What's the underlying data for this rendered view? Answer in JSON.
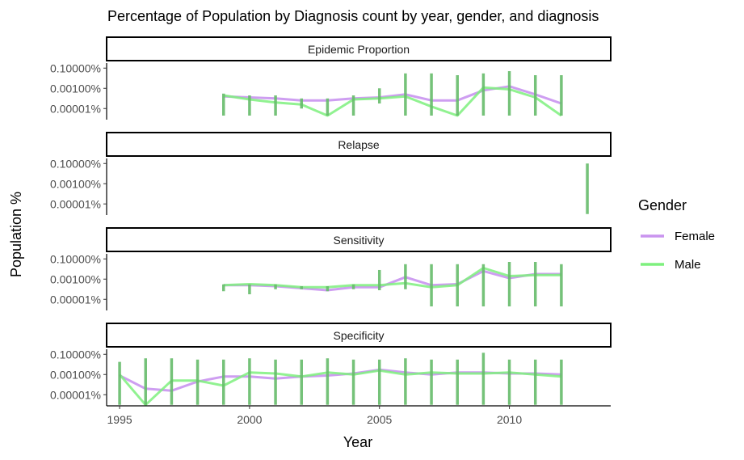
{
  "chart_data": {
    "type": "line",
    "title": "Percentage of Population by Diagnosis count by year, gender, and diagnosis",
    "xlabel": "Year",
    "ylabel": "Population %",
    "x_ticks": [
      1995,
      2000,
      2005,
      2010
    ],
    "x_tick_labels": [
      "1995",
      "2000",
      "2005",
      "2010"
    ],
    "xlim": [
      1994.5,
      2013.9
    ],
    "y_scale": "log10",
    "y_ticks": [
      0.1,
      0.001,
      1e-05
    ],
    "y_tick_labels": [
      "0.10000%",
      "0.00100%",
      "0.00001%"
    ],
    "ylim_log10": [
      -6.1,
      -0.5
    ],
    "grid": false,
    "legend": {
      "title": "Gender",
      "position": "right",
      "entries": [
        {
          "label": "Female",
          "color": "#c994ef"
        },
        {
          "label": "Male",
          "color": "#7ef07e"
        }
      ]
    },
    "facets": [
      {
        "label": "Epidemic Proportion",
        "series": [
          {
            "name": "Female",
            "x": [
              1999,
              2000,
              2001,
              2002,
              2003,
              2004,
              2005,
              2006,
              2007,
              2008,
              2009,
              2010,
              2011,
              2012
            ],
            "y": [
              0.000158,
              0.000126,
              0.0001,
              6.31e-05,
              6.31e-05,
              0.0001,
              0.000126,
              0.000251,
              6.31e-05,
              6.31e-05,
              0.00063,
              0.00158,
              0.000251,
              3.16e-05
            ]
          },
          {
            "name": "Male",
            "x": [
              1999,
              2000,
              2001,
              2002,
              2003,
              2004,
              2005,
              2006,
              2007,
              2008,
              2009,
              2010,
              2011,
              2012
            ],
            "y": [
              0.0002,
              7.94e-05,
              3.98e-05,
              2.51e-05,
              2e-06,
              7.94e-05,
              0.0001,
              0.000158,
              1.58e-05,
              2e-06,
              0.0012,
              0.000794,
              0.000126,
              2e-06
            ]
          }
        ],
        "spans": [
          {
            "x": 1999,
            "ymin": 2e-06,
            "ymax": 0.0003
          },
          {
            "x": 2000,
            "ymin": 2e-06,
            "ymax": 0.0002
          },
          {
            "x": 2001,
            "ymin": 2e-06,
            "ymax": 0.0002
          },
          {
            "x": 2002,
            "ymin": 1e-05,
            "ymax": 0.0001
          },
          {
            "x": 2003,
            "ymin": 2e-06,
            "ymax": 0.0001
          },
          {
            "x": 2004,
            "ymin": 2e-06,
            "ymax": 0.0002
          },
          {
            "x": 2005,
            "ymin": 3.16e-05,
            "ymax": 0.001
          },
          {
            "x": 2006,
            "ymin": 2e-06,
            "ymax": 0.03
          },
          {
            "x": 2007,
            "ymin": 2e-06,
            "ymax": 0.03
          },
          {
            "x": 2008,
            "ymin": 2e-06,
            "ymax": 0.02
          },
          {
            "x": 2009,
            "ymin": 2e-06,
            "ymax": 0.03
          },
          {
            "x": 2010,
            "ymin": 2e-06,
            "ymax": 0.05
          },
          {
            "x": 2011,
            "ymin": 2e-06,
            "ymax": 0.02
          },
          {
            "x": 2012,
            "ymin": 2e-06,
            "ymax": 0.02
          }
        ]
      },
      {
        "label": "Relapse",
        "series": [
          {
            "name": "Female",
            "x": [],
            "y": []
          },
          {
            "name": "Male",
            "x": [],
            "y": []
          }
        ],
        "spans": [
          {
            "x": 2013,
            "ymin": 1e-06,
            "ymax": 0.1
          }
        ]
      },
      {
        "label": "Sensitivity",
        "series": [
          {
            "name": "Female",
            "x": [
              1999,
              2000,
              2001,
              2002,
              2003,
              2004,
              2005,
              2006,
              2007,
              2008,
              2009,
              2010,
              2011,
              2012
            ],
            "y": [
              0.000251,
              0.000251,
              0.0002,
              0.000126,
              7.94e-05,
              0.000158,
              0.000158,
              0.00158,
              0.000251,
              0.000316,
              0.0063,
              0.00126,
              0.00316,
              0.00316
            ]
          },
          {
            "name": "Male",
            "x": [
              1999,
              2000,
              2001,
              2002,
              2003,
              2004,
              2005,
              2006,
              2007,
              2008,
              2009,
              2010,
              2011,
              2012
            ],
            "y": [
              0.000251,
              0.000316,
              0.000251,
              0.000158,
              0.000158,
              0.000251,
              0.000251,
              0.000398,
              0.000158,
              0.000251,
              0.0126,
              0.002,
              0.0025,
              0.0025
            ]
          }
        ],
        "spans": [
          {
            "x": 1999,
            "ymin": 6.31e-05,
            "ymax": 0.0003
          },
          {
            "x": 2000,
            "ymin": 3.16e-05,
            "ymax": 0.0003
          },
          {
            "x": 2001,
            "ymin": 0.0001,
            "ymax": 0.0003
          },
          {
            "x": 2002,
            "ymin": 0.0001,
            "ymax": 0.0002
          },
          {
            "x": 2003,
            "ymin": 6.31e-05,
            "ymax": 0.0002
          },
          {
            "x": 2004,
            "ymin": 0.0001,
            "ymax": 0.0003
          },
          {
            "x": 2005,
            "ymin": 7.94e-05,
            "ymax": 0.008
          },
          {
            "x": 2006,
            "ymin": 0.0001,
            "ymax": 0.03
          },
          {
            "x": 2007,
            "ymin": 2e-06,
            "ymax": 0.03
          },
          {
            "x": 2008,
            "ymin": 2e-06,
            "ymax": 0.03
          },
          {
            "x": 2009,
            "ymin": 2e-06,
            "ymax": 0.03
          },
          {
            "x": 2010,
            "ymin": 2e-06,
            "ymax": 0.05
          },
          {
            "x": 2011,
            "ymin": 2e-06,
            "ymax": 0.05
          },
          {
            "x": 2012,
            "ymin": 2e-06,
            "ymax": 0.03
          }
        ]
      },
      {
        "label": "Specificity",
        "series": [
          {
            "name": "Female",
            "x": [
              1995,
              1996,
              1997,
              1998,
              1999,
              2000,
              2001,
              2002,
              2003,
              2004,
              2005,
              2006,
              2007,
              2008,
              2009,
              2010,
              2011,
              2012
            ],
            "y": [
              0.000794,
              3.98e-05,
              2.51e-05,
              0.0002,
              0.00063,
              0.00063,
              0.000398,
              0.00063,
              0.000794,
              0.00126,
              0.003,
              0.00158,
              0.001,
              0.00158,
              0.00158,
              0.00126,
              0.00126,
              0.001
            ]
          },
          {
            "name": "Male",
            "x": [
              1995,
              1996,
              1997,
              1998,
              1999,
              2000,
              2001,
              2002,
              2003,
              2004,
              2005,
              2006,
              2007,
              2008,
              2009,
              2010,
              2011,
              2012
            ],
            "y": [
              0.001,
              1e-06,
              0.000251,
              0.000251,
              7.94e-05,
              0.0016,
              0.00126,
              0.00063,
              0.00158,
              0.001,
              0.0025,
              0.001,
              0.00158,
              0.00126,
              0.00126,
              0.00158,
              0.001,
              0.00063
            ]
          }
        ],
        "spans": [
          {
            "x": 1995,
            "ymin": 1e-06,
            "ymax": 0.0178
          },
          {
            "x": 1996,
            "ymin": 1e-06,
            "ymax": 0.04
          },
          {
            "x": 1997,
            "ymin": 1e-06,
            "ymax": 0.04
          },
          {
            "x": 1998,
            "ymin": 1e-06,
            "ymax": 0.03
          },
          {
            "x": 1999,
            "ymin": 1e-06,
            "ymax": 0.03
          },
          {
            "x": 2000,
            "ymin": 1e-06,
            "ymax": 0.04
          },
          {
            "x": 2001,
            "ymin": 1e-06,
            "ymax": 0.03
          },
          {
            "x": 2002,
            "ymin": 1e-06,
            "ymax": 0.03
          },
          {
            "x": 2003,
            "ymin": 1e-06,
            "ymax": 0.04
          },
          {
            "x": 2004,
            "ymin": 1e-06,
            "ymax": 0.03
          },
          {
            "x": 2005,
            "ymin": 1e-06,
            "ymax": 0.03
          },
          {
            "x": 2006,
            "ymin": 1e-06,
            "ymax": 0.04
          },
          {
            "x": 2007,
            "ymin": 1e-06,
            "ymax": 0.03
          },
          {
            "x": 2008,
            "ymin": 1e-06,
            "ymax": 0.03
          },
          {
            "x": 2009,
            "ymin": 1e-06,
            "ymax": 0.14
          },
          {
            "x": 2010,
            "ymin": 1e-06,
            "ymax": 0.03
          },
          {
            "x": 2011,
            "ymin": 1e-06,
            "ymax": 0.03
          },
          {
            "x": 2012,
            "ymin": 1e-06,
            "ymax": 0.03
          }
        ]
      }
    ]
  }
}
